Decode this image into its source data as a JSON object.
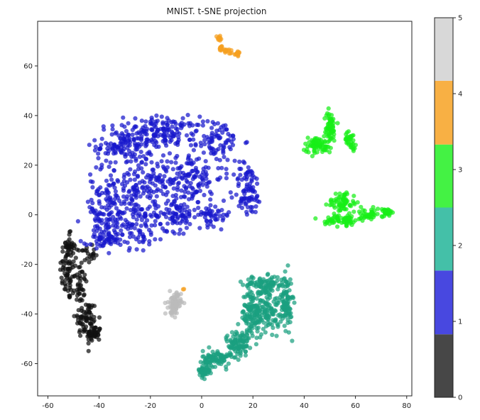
{
  "chart_data": {
    "type": "scatter",
    "title": "MNIST. t-SNE projection",
    "xlabel": "",
    "ylabel": "",
    "xlim": [
      -64,
      82
    ],
    "ylim": [
      -73,
      78
    ],
    "x_ticks": [
      -60,
      -40,
      -20,
      0,
      20,
      40,
      60,
      80
    ],
    "y_ticks": [
      -60,
      -40,
      -20,
      0,
      20,
      40,
      60
    ],
    "grid": false,
    "colorbar": {
      "min": 0,
      "max": 5,
      "ticks": [
        0,
        1,
        2,
        3,
        4,
        5
      ],
      "bands": [
        {
          "from": 0,
          "to": 0.83,
          "color": "#474747"
        },
        {
          "from": 0.83,
          "to": 1.67,
          "color": "#4848e0"
        },
        {
          "from": 1.67,
          "to": 2.5,
          "color": "#44c0a8"
        },
        {
          "from": 2.5,
          "to": 3.33,
          "color": "#44f244"
        },
        {
          "from": 3.33,
          "to": 4.17,
          "color": "#f8b044"
        },
        {
          "from": 4.17,
          "to": 5,
          "color": "#d8d8d8"
        }
      ]
    },
    "clusters": [
      {
        "label": 0,
        "color": "#111111",
        "count": 260,
        "regions": [
          {
            "cx": -52,
            "cy": -22,
            "rx": 3,
            "ry": 12,
            "w": 3
          },
          {
            "cx": -48,
            "cy": -28,
            "rx": 3,
            "ry": 10,
            "w": 2
          },
          {
            "cx": -45,
            "cy": -42,
            "rx": 4,
            "ry": 7,
            "w": 3
          },
          {
            "cx": -42,
            "cy": -48,
            "rx": 2.5,
            "ry": 3,
            "w": 2
          },
          {
            "cx": -52,
            "cy": -12,
            "rx": 1.5,
            "ry": 4,
            "w": 1
          },
          {
            "cx": -45,
            "cy": -16,
            "rx": 3,
            "ry": 3,
            "w": 1
          }
        ]
      },
      {
        "label": 1,
        "color": "#1818cc",
        "count": 1100,
        "regions": [
          {
            "cx": -30,
            "cy": 28,
            "rx": 10,
            "ry": 8,
            "w": 3
          },
          {
            "cx": -15,
            "cy": 33,
            "rx": 12,
            "ry": 6,
            "w": 3
          },
          {
            "cx": -25,
            "cy": 10,
            "rx": 14,
            "ry": 10,
            "w": 4
          },
          {
            "cx": -38,
            "cy": 0,
            "rx": 8,
            "ry": 10,
            "w": 2
          },
          {
            "cx": -5,
            "cy": 15,
            "rx": 12,
            "ry": 10,
            "w": 3
          },
          {
            "cx": 5,
            "cy": 30,
            "rx": 10,
            "ry": 8,
            "w": 2
          },
          {
            "cx": 18,
            "cy": 10,
            "rx": 5,
            "ry": 10,
            "w": 2
          },
          {
            "cx": -25,
            "cy": -5,
            "rx": 10,
            "ry": 8,
            "w": 2
          },
          {
            "cx": -10,
            "cy": 0,
            "rx": 8,
            "ry": 6,
            "w": 2
          },
          {
            "cx": 5,
            "cy": 0,
            "rx": 6,
            "ry": 4,
            "w": 1
          },
          {
            "cx": -38,
            "cy": -10,
            "rx": 5,
            "ry": 3,
            "w": 1
          }
        ]
      },
      {
        "label": 2,
        "color": "#1aa080",
        "count": 650,
        "regions": [
          {
            "cx": 25,
            "cy": -28,
            "rx": 8,
            "ry": 3,
            "w": 2
          },
          {
            "cx": 33,
            "cy": -35,
            "rx": 2,
            "ry": 10,
            "w": 2
          },
          {
            "cx": 20,
            "cy": -40,
            "rx": 4,
            "ry": 9,
            "w": 3
          },
          {
            "cx": 26,
            "cy": -38,
            "rx": 4,
            "ry": 8,
            "w": 2
          },
          {
            "cx": 14,
            "cy": -52,
            "rx": 4,
            "ry": 5,
            "w": 2
          },
          {
            "cx": 6,
            "cy": -58,
            "rx": 5,
            "ry": 3,
            "w": 2
          },
          {
            "cx": 1,
            "cy": -63,
            "rx": 2,
            "ry": 2,
            "w": 1
          }
        ]
      },
      {
        "label": 3,
        "color": "#18ee18",
        "count": 380,
        "regions": [
          {
            "cx": 45,
            "cy": 28,
            "rx": 5,
            "ry": 3,
            "w": 2
          },
          {
            "cx": 50,
            "cy": 35,
            "rx": 2,
            "ry": 6,
            "w": 2
          },
          {
            "cx": 58,
            "cy": 30,
            "rx": 2,
            "ry": 3,
            "w": 1
          },
          {
            "cx": 55,
            "cy": 5,
            "rx": 5,
            "ry": 4,
            "w": 2
          },
          {
            "cx": 55,
            "cy": -2,
            "rx": 6,
            "ry": 2,
            "w": 2
          },
          {
            "cx": 65,
            "cy": 0,
            "rx": 5,
            "ry": 2,
            "w": 1
          },
          {
            "cx": 72,
            "cy": 1,
            "rx": 2,
            "ry": 1.5,
            "w": 1
          }
        ]
      },
      {
        "label": 4,
        "color": "#f5a020",
        "count": 60,
        "regions": [
          {
            "cx": 7,
            "cy": 71,
            "rx": 1,
            "ry": 1,
            "w": 1
          },
          {
            "cx": 7.5,
            "cy": 67,
            "rx": 1,
            "ry": 1,
            "w": 1
          },
          {
            "cx": 10,
            "cy": 66,
            "rx": 1.2,
            "ry": 1,
            "w": 1
          },
          {
            "cx": 14,
            "cy": 65,
            "rx": 1,
            "ry": 0.8,
            "w": 1
          },
          {
            "cx": -7,
            "cy": -30,
            "rx": 0.3,
            "ry": 0.3,
            "w": 0.15
          }
        ]
      },
      {
        "label": 5,
        "color": "#bbbbbb",
        "count": 90,
        "regions": [
          {
            "cx": -10.5,
            "cy": -36,
            "rx": 2.2,
            "ry": 4,
            "w": 1
          }
        ]
      }
    ]
  }
}
